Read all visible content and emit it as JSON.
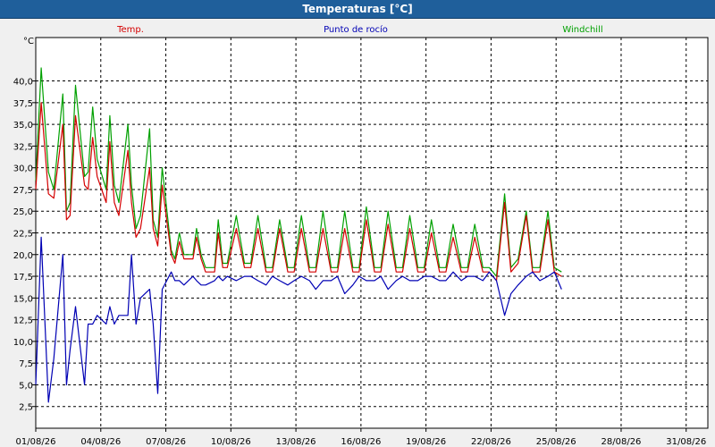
{
  "window": {
    "title": "Temperaturas [°C]"
  },
  "chart_data": {
    "type": "line",
    "ylabel": "°C",
    "xlim": [
      "01/08/26",
      "01/09/26"
    ],
    "ylim": [
      0,
      45
    ],
    "grid": true,
    "x_ticks": [
      "01/08/26",
      "04/08/26",
      "07/08/26",
      "10/08/26",
      "13/08/26",
      "16/08/26",
      "19/08/26",
      "22/08/26",
      "25/08/26",
      "28/08/26",
      "31/08/26"
    ],
    "y_ticks": [
      "2,5",
      "5,0",
      "7,5",
      "10,0",
      "12,5",
      "15,0",
      "17,5",
      "20,0",
      "22,5",
      "25,0",
      "27,5",
      "30,0",
      "32,5",
      "35,0",
      "37,5",
      "40,0"
    ],
    "legend_position": "top",
    "series": [
      {
        "name": "Temp.",
        "color": "#d40000",
        "x": [
          "01/08/26 00:00",
          "01/08/26 06:00",
          "01/08/26 14:00",
          "01/08/26 20:00",
          "02/08/26 06:00",
          "02/08/26 10:00",
          "02/08/26 14:00",
          "02/08/26 20:00",
          "03/08/26 06:00",
          "03/08/26 10:00",
          "03/08/26 15:00",
          "03/08/26 20:00",
          "04/08/26 06:00",
          "04/08/26 10:00",
          "04/08/26 15:00",
          "04/08/26 20:00",
          "05/08/26 06:00",
          "05/08/26 10:00",
          "05/08/26 15:00",
          "05/08/26 20:00",
          "06/08/26 06:00",
          "06/08/26 10:00",
          "06/08/26 15:00",
          "06/08/26 20:00",
          "07/08/26 06:00",
          "07/08/26 10:00",
          "07/08/26 15:00",
          "07/08/26 20:00",
          "08/08/26 06:00",
          "08/08/26 10:00",
          "08/08/26 15:00",
          "08/08/26 20:00",
          "09/08/26 06:00",
          "09/08/26 10:00",
          "09/08/26 15:00",
          "09/08/26 20:00",
          "10/08/26 06:00",
          "10/08/26 15:00",
          "10/08/26 22:00",
          "11/08/26 06:00",
          "11/08/26 15:00",
          "11/08/26 22:00",
          "12/08/26 06:00",
          "12/08/26 15:00",
          "12/08/26 22:00",
          "13/08/26 06:00",
          "13/08/26 15:00",
          "13/08/26 22:00",
          "14/08/26 06:00",
          "14/08/26 15:00",
          "14/08/26 22:00",
          "15/08/26 06:00",
          "15/08/26 15:00",
          "15/08/26 22:00",
          "16/08/26 06:00",
          "16/08/26 15:00",
          "16/08/26 22:00",
          "17/08/26 06:00",
          "17/08/26 15:00",
          "17/08/26 22:00",
          "18/08/26 06:00",
          "18/08/26 15:00",
          "18/08/26 22:00",
          "19/08/26 06:00",
          "19/08/26 15:00",
          "19/08/26 22:00",
          "20/08/26 06:00",
          "20/08/26 15:00",
          "20/08/26 22:00",
          "21/08/26 06:00",
          "21/08/26 15:00",
          "21/08/26 22:00",
          "22/08/26 06:00",
          "22/08/26 15:00",
          "22/08/26 22:00",
          "23/08/26 06:00",
          "23/08/26 15:00",
          "23/08/26 22:00",
          "24/08/26 06:00",
          "24/08/26 15:00",
          "24/08/26 22:00",
          "25/08/26 06:00"
        ],
        "values": [
          27.5,
          37.5,
          27.0,
          26.5,
          35.0,
          24.0,
          24.5,
          36.0,
          28.0,
          27.5,
          33.5,
          29.0,
          26.0,
          33.0,
          26.0,
          24.5,
          32.0,
          26.0,
          22.0,
          23.0,
          30.0,
          23.0,
          21.0,
          28.0,
          20.0,
          19.0,
          21.5,
          19.5,
          19.5,
          22.0,
          19.5,
          18.0,
          18.0,
          22.5,
          18.5,
          18.5,
          23.0,
          18.5,
          18.5,
          23.0,
          18.0,
          18.0,
          23.0,
          18.0,
          18.0,
          23.0,
          18.0,
          18.0,
          23.0,
          18.0,
          18.0,
          23.0,
          18.0,
          18.0,
          24.0,
          18.0,
          18.0,
          23.5,
          18.0,
          18.0,
          23.0,
          18.0,
          18.0,
          22.5,
          18.0,
          18.0,
          22.0,
          18.0,
          18.0,
          22.0,
          18.0,
          18.0,
          17.0,
          26.0,
          18.0,
          19.0,
          24.5,
          18.0,
          18.0,
          24.0,
          18.0,
          17.5
        ]
      },
      {
        "name": "Punto de rocío",
        "color": "#0000b4",
        "x": [
          "01/08/26 00:00",
          "01/08/26 06:00",
          "01/08/26 14:00",
          "01/08/26 20:00",
          "02/08/26 06:00",
          "02/08/26 10:00",
          "02/08/26 14:00",
          "02/08/26 20:00",
          "03/08/26 06:00",
          "03/08/26 10:00",
          "03/08/26 15:00",
          "03/08/26 20:00",
          "04/08/26 06:00",
          "04/08/26 10:00",
          "04/08/26 15:00",
          "04/08/26 20:00",
          "05/08/26 06:00",
          "05/08/26 10:00",
          "05/08/26 15:00",
          "05/08/26 20:00",
          "06/08/26 06:00",
          "06/08/26 10:00",
          "06/08/26 15:00",
          "06/08/26 20:00",
          "07/08/26 06:00",
          "07/08/26 10:00",
          "07/08/26 15:00",
          "07/08/26 20:00",
          "08/08/26 06:00",
          "08/08/26 10:00",
          "08/08/26 15:00",
          "08/08/26 20:00",
          "09/08/26 06:00",
          "09/08/26 10:00",
          "09/08/26 15:00",
          "09/08/26 20:00",
          "10/08/26 06:00",
          "10/08/26 15:00",
          "10/08/26 22:00",
          "11/08/26 06:00",
          "11/08/26 15:00",
          "11/08/26 22:00",
          "12/08/26 06:00",
          "12/08/26 15:00",
          "12/08/26 22:00",
          "13/08/26 06:00",
          "13/08/26 15:00",
          "13/08/26 22:00",
          "14/08/26 06:00",
          "14/08/26 15:00",
          "14/08/26 22:00",
          "15/08/26 06:00",
          "15/08/26 15:00",
          "15/08/26 22:00",
          "16/08/26 06:00",
          "16/08/26 15:00",
          "16/08/26 22:00",
          "17/08/26 06:00",
          "17/08/26 15:00",
          "17/08/26 22:00",
          "18/08/26 06:00",
          "18/08/26 15:00",
          "18/08/26 22:00",
          "19/08/26 06:00",
          "19/08/26 15:00",
          "19/08/26 22:00",
          "20/08/26 06:00",
          "20/08/26 15:00",
          "20/08/26 22:00",
          "21/08/26 06:00",
          "21/08/26 15:00",
          "21/08/26 22:00",
          "22/08/26 06:00",
          "22/08/26 15:00",
          "22/08/26 22:00",
          "23/08/26 06:00",
          "23/08/26 15:00",
          "23/08/26 22:00",
          "24/08/26 06:00",
          "24/08/26 15:00",
          "24/08/26 22:00",
          "25/08/26 06:00"
        ],
        "values": [
          5.0,
          22.0,
          3.0,
          8.0,
          20.0,
          5.0,
          9.0,
          14.0,
          5.0,
          12.0,
          12.0,
          13.0,
          12.0,
          14.0,
          12.0,
          13.0,
          13.0,
          20.0,
          12.0,
          15.0,
          16.0,
          12.0,
          4.0,
          16.0,
          18.0,
          17.0,
          17.0,
          16.5,
          17.5,
          17.0,
          16.5,
          16.5,
          17.0,
          17.5,
          17.0,
          17.5,
          17.0,
          17.5,
          17.5,
          17.0,
          16.5,
          17.5,
          17.0,
          16.5,
          17.0,
          17.5,
          17.0,
          16.0,
          17.0,
          17.0,
          17.5,
          15.5,
          16.5,
          17.5,
          17.0,
          17.0,
          17.5,
          16.0,
          17.0,
          17.5,
          17.0,
          17.0,
          17.5,
          17.5,
          17.0,
          17.0,
          18.0,
          17.0,
          17.5,
          17.5,
          17.0,
          18.0,
          17.0,
          13.0,
          15.5,
          16.5,
          17.5,
          18.0,
          17.0,
          17.5,
          18.0,
          16.0
        ]
      },
      {
        "name": "Windchill",
        "color": "#00a000",
        "x": [
          "01/08/26 00:00",
          "01/08/26 06:00",
          "01/08/26 14:00",
          "01/08/26 20:00",
          "02/08/26 06:00",
          "02/08/26 10:00",
          "02/08/26 14:00",
          "02/08/26 20:00",
          "03/08/26 06:00",
          "03/08/26 10:00",
          "03/08/26 15:00",
          "03/08/26 20:00",
          "04/08/26 06:00",
          "04/08/26 10:00",
          "04/08/26 15:00",
          "04/08/26 20:00",
          "05/08/26 06:00",
          "05/08/26 10:00",
          "05/08/26 15:00",
          "05/08/26 20:00",
          "06/08/26 06:00",
          "06/08/26 10:00",
          "06/08/26 15:00",
          "06/08/26 20:00",
          "07/08/26 06:00",
          "07/08/26 10:00",
          "07/08/26 15:00",
          "07/08/26 20:00",
          "08/08/26 06:00",
          "08/08/26 10:00",
          "08/08/26 15:00",
          "08/08/26 20:00",
          "09/08/26 06:00",
          "09/08/26 10:00",
          "09/08/26 15:00",
          "09/08/26 20:00",
          "10/08/26 06:00",
          "10/08/26 15:00",
          "10/08/26 22:00",
          "11/08/26 06:00",
          "11/08/26 15:00",
          "11/08/26 22:00",
          "12/08/26 06:00",
          "12/08/26 15:00",
          "12/08/26 22:00",
          "13/08/26 06:00",
          "13/08/26 15:00",
          "13/08/26 22:00",
          "14/08/26 06:00",
          "14/08/26 15:00",
          "14/08/26 22:00",
          "15/08/26 06:00",
          "15/08/26 15:00",
          "15/08/26 22:00",
          "16/08/26 06:00",
          "16/08/26 15:00",
          "16/08/26 22:00",
          "17/08/26 06:00",
          "17/08/26 15:00",
          "17/08/26 22:00",
          "18/08/26 06:00",
          "18/08/26 15:00",
          "18/08/26 22:00",
          "19/08/26 06:00",
          "19/08/26 15:00",
          "19/08/26 22:00",
          "20/08/26 06:00",
          "20/08/26 15:00",
          "20/08/26 22:00",
          "21/08/26 06:00",
          "21/08/26 15:00",
          "21/08/26 22:00",
          "22/08/26 06:00",
          "22/08/26 15:00",
          "22/08/26 22:00",
          "23/08/26 06:00",
          "23/08/26 15:00",
          "23/08/26 22:00",
          "24/08/26 06:00",
          "24/08/26 15:00",
          "24/08/26 22:00",
          "25/08/26 06:00"
        ],
        "values": [
          28.5,
          41.5,
          29.5,
          27.5,
          38.5,
          25.0,
          26.0,
          39.5,
          29.0,
          29.5,
          37.0,
          31.0,
          27.5,
          36.0,
          28.0,
          26.0,
          35.0,
          28.0,
          23.0,
          24.5,
          34.5,
          24.0,
          22.0,
          30.0,
          20.5,
          19.5,
          22.5,
          20.0,
          20.0,
          23.0,
          20.0,
          18.5,
          18.5,
          24.0,
          19.0,
          19.0,
          24.5,
          19.0,
          19.0,
          24.5,
          18.5,
          18.5,
          24.0,
          18.5,
          18.5,
          24.5,
          18.5,
          18.5,
          25.0,
          18.5,
          18.5,
          25.0,
          18.5,
          18.5,
          25.5,
          18.5,
          18.5,
          25.0,
          18.5,
          18.5,
          24.5,
          18.5,
          18.5,
          24.0,
          18.5,
          18.5,
          23.5,
          18.5,
          18.5,
          23.5,
          18.5,
          18.5,
          17.5,
          27.0,
          18.5,
          19.5,
          25.0,
          18.5,
          18.5,
          25.0,
          18.5,
          18.0
        ]
      }
    ]
  }
}
